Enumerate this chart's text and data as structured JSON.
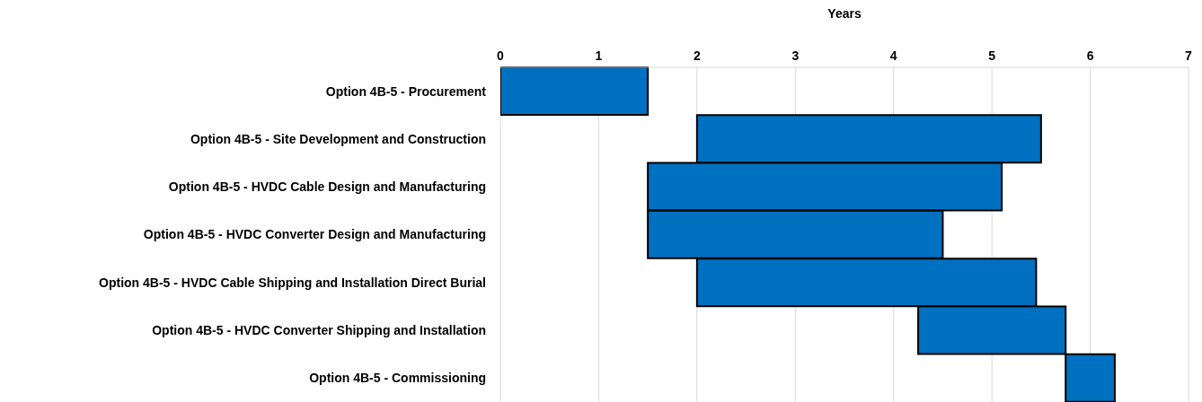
{
  "chart_data": {
    "type": "bar",
    "orientation": "horizontal",
    "xlabel": "Years",
    "categories": [
      "Option 4B-5 - Procurement",
      "Option 4B-5 - Site Development and Construction",
      "Option 4B-5 - HVDC Cable Design and Manufacturing",
      "Option 4B-5 - HVDC Converter Design and Manufacturing",
      "Option 4B-5 - HVDC Cable Shipping and Installation Direct Burial",
      "Option 4B-5 - HVDC Converter Shipping and Installation",
      "Option 4B-5 - Commissioning"
    ],
    "base": [
      0,
      2,
      1.5,
      1.5,
      2,
      4.25,
      5.75
    ],
    "values": [
      1.5,
      3.5,
      3.6,
      3,
      3.45,
      1.5,
      0.5
    ],
    "color": "#0070c0",
    "xlim": [
      0,
      7
    ],
    "xticks": [
      0,
      1,
      2,
      3,
      4,
      5,
      6,
      7
    ],
    "grid": "x",
    "legend": false
  }
}
